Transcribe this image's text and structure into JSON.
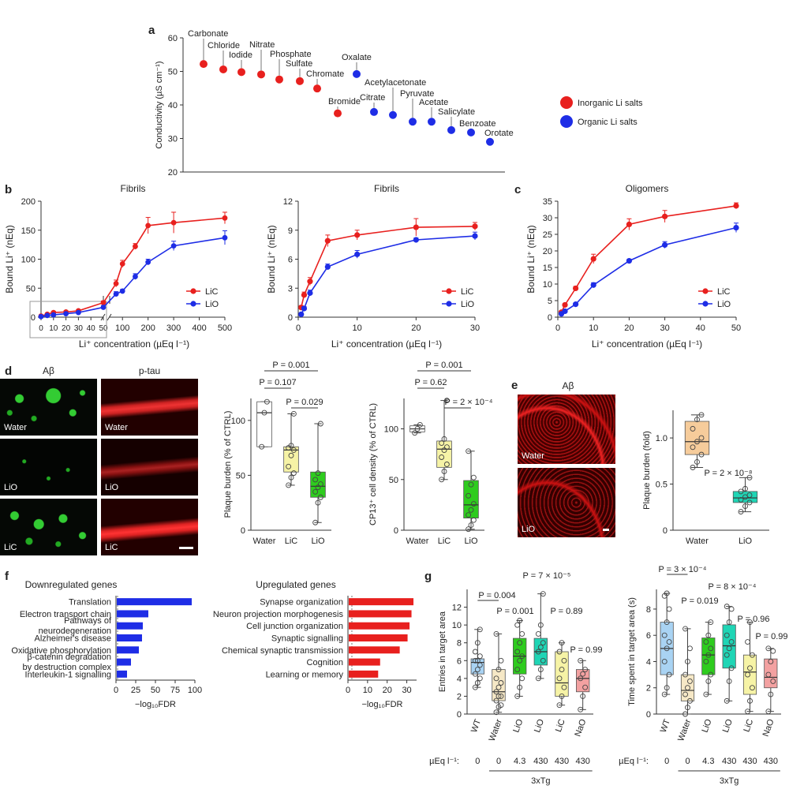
{
  "panels": {
    "a": "a",
    "b": "b",
    "c": "c",
    "d": "d",
    "e": "e",
    "f": "f",
    "g": "g"
  },
  "colors": {
    "red": "#e8201e",
    "blue": "#1e2de6",
    "yellow": "#f6f3a6",
    "green": "#2ecc1e",
    "teal": "#1fd5b5",
    "peach": "#f6cc9b",
    "lightblue": "#a9d3f3",
    "pink": "#f3a1a1",
    "tan": "#f6e8c6"
  },
  "chart_data": [
    {
      "id": "a",
      "type": "scatter",
      "ylabel": "Conductivity (µS cm⁻¹)",
      "ylim": [
        20,
        60
      ],
      "yticks": [
        "20",
        "30",
        "40",
        "50",
        "60"
      ],
      "legend": [
        {
          "name": "Inorganic Li salts",
          "color": "#e8201e"
        },
        {
          "name": "Organic Li salts",
          "color": "#1e2de6"
        }
      ],
      "points": [
        {
          "label": "Carbonate",
          "y": 52.2,
          "group": "inorganic"
        },
        {
          "label": "Chloride",
          "y": 50.6,
          "group": "inorganic"
        },
        {
          "label": "Iodide",
          "y": 49.8,
          "group": "inorganic"
        },
        {
          "label": "Nitrate",
          "y": 49.1,
          "group": "inorganic"
        },
        {
          "label": "Phosphate",
          "y": 47.6,
          "group": "inorganic"
        },
        {
          "label": "Sulfate",
          "y": 47.1,
          "group": "inorganic"
        },
        {
          "label": "Chromate",
          "y": 44.9,
          "group": "inorganic"
        },
        {
          "label": "Bromide",
          "y": 37.5,
          "group": "inorganic"
        },
        {
          "label": "Oxalate",
          "y": 49.2,
          "group": "organic"
        },
        {
          "label": "Citrate",
          "y": 37.9,
          "group": "organic"
        },
        {
          "label": "Acetylacetonate",
          "y": 37.0,
          "group": "organic"
        },
        {
          "label": "Pyruvate",
          "y": 35.0,
          "group": "organic"
        },
        {
          "label": "Acetate",
          "y": 35.0,
          "group": "organic"
        },
        {
          "label": "Salicylate",
          "y": 32.5,
          "group": "organic"
        },
        {
          "label": "Benzoate",
          "y": 31.8,
          "group": "organic"
        },
        {
          "label": "Orotate",
          "y": 29.0,
          "group": "organic"
        }
      ]
    },
    {
      "id": "b1",
      "type": "line",
      "title": "Fibrils",
      "xlabel": "Li⁺ concentration (µEq l⁻¹)",
      "ylabel": "Bound Li⁺ (nEq)",
      "ylim": [
        0,
        200
      ],
      "yticks": [
        "0",
        "50",
        "100",
        "150",
        "200"
      ],
      "xticks_low": [
        "0",
        "10",
        "20",
        "30",
        "40",
        "50"
      ],
      "xticks_high": [
        "100",
        "200",
        "300",
        "400",
        "500"
      ],
      "series": [
        {
          "name": "LiC",
          "color": "#e8201e",
          "x": [
            0,
            5,
            10,
            20,
            30,
            50,
            75,
            100,
            150,
            200,
            300,
            500
          ],
          "y": [
            2,
            5,
            8,
            9,
            11,
            25,
            58,
            92,
            122,
            158,
            163,
            171
          ],
          "err": [
            1,
            1,
            2,
            2,
            2,
            3,
            6,
            6,
            5,
            14,
            18,
            10
          ]
        },
        {
          "name": "LiO",
          "color": "#1e2de6",
          "x": [
            0,
            5,
            10,
            20,
            30,
            50,
            75,
            100,
            150,
            200,
            300,
            500
          ],
          "y": [
            1,
            3,
            4,
            6,
            8,
            17,
            40,
            45,
            70,
            95,
            123,
            137
          ],
          "err": [
            1,
            1,
            1,
            1,
            2,
            3,
            4,
            3,
            5,
            5,
            8,
            12
          ]
        }
      ]
    },
    {
      "id": "b2",
      "type": "line",
      "title": "Fibrils",
      "xlabel": "Li⁺ concentration (µEq l⁻¹)",
      "ylabel": "Bound Li⁺ (nEq)",
      "xlim": [
        0,
        30
      ],
      "ylim": [
        0,
        12
      ],
      "xticks": [
        "0",
        "10",
        "20",
        "30"
      ],
      "yticks": [
        "0",
        "3",
        "6",
        "9",
        "12"
      ],
      "series": [
        {
          "name": "LiC",
          "color": "#e8201e",
          "x": [
            0.5,
            1,
            2,
            5,
            10,
            20,
            30
          ],
          "y": [
            1.0,
            2.3,
            3.7,
            7.9,
            8.5,
            9.3,
            9.4
          ],
          "err": [
            0.2,
            0.3,
            0.4,
            0.6,
            0.5,
            0.9,
            0.4
          ]
        },
        {
          "name": "LiO",
          "color": "#1e2de6",
          "x": [
            0.5,
            1,
            2,
            5,
            10,
            20,
            30
          ],
          "y": [
            0.3,
            0.9,
            2.5,
            5.2,
            6.5,
            8.0,
            8.4
          ],
          "err": [
            0.1,
            0.2,
            0.3,
            0.3,
            0.4,
            0.2,
            0.4
          ]
        }
      ]
    },
    {
      "id": "c",
      "type": "line",
      "title": "Oligomers",
      "xlabel": "Li⁺ concentration (µEq l⁻¹)",
      "ylabel": "Bound Li⁺ (nEq)",
      "xlim": [
        0,
        50
      ],
      "ylim": [
        0,
        35
      ],
      "xticks": [
        "0",
        "10",
        "20",
        "30",
        "40",
        "50"
      ],
      "yticks": [
        "0",
        "5",
        "10",
        "15",
        "20",
        "25",
        "30",
        "35"
      ],
      "series": [
        {
          "name": "LiC",
          "color": "#e8201e",
          "x": [
            1,
            2,
            5,
            10,
            20,
            30,
            50
          ],
          "y": [
            1.5,
            3.7,
            8.7,
            17.6,
            28.0,
            30.4,
            33.6
          ],
          "err": [
            0.3,
            0.4,
            0.6,
            1.4,
            1.7,
            1.8,
            0.9
          ]
        },
        {
          "name": "LiO",
          "color": "#1e2de6",
          "x": [
            1,
            2,
            5,
            10,
            20,
            30,
            50
          ],
          "y": [
            1.0,
            1.8,
            3.9,
            9.7,
            17.0,
            21.8,
            27.0
          ],
          "err": [
            0.2,
            0.3,
            0.4,
            0.7,
            0.5,
            1.0,
            1.4
          ]
        }
      ]
    },
    {
      "id": "d1",
      "type": "box",
      "ylabel": "Plaque burden (% of CTRL)",
      "ylim": [
        0,
        120
      ],
      "yticks": [
        "0",
        "50",
        "100"
      ],
      "categories": [
        "Water",
        "LiC",
        "LiO"
      ],
      "boxes": [
        {
          "color": "#ffffff",
          "q1": 76,
          "median": 107,
          "q3": 117,
          "min": 76,
          "max": 117,
          "points": [
            76,
            107,
            117
          ]
        },
        {
          "color": "#f6f3a6",
          "q1": 53,
          "median": 73,
          "q3": 76,
          "min": 41,
          "max": 106,
          "points": [
            41,
            48,
            52,
            58,
            68,
            73,
            75,
            77,
            106
          ]
        },
        {
          "color": "#2ecc1e",
          "q1": 30,
          "median": 40,
          "q3": 53,
          "min": 7,
          "max": 97,
          "points": [
            7,
            25,
            30,
            35,
            39,
            42,
            46,
            52,
            97
          ]
        }
      ],
      "brackets": [
        {
          "text": "P = 0.001",
          "from": 0,
          "to": 2
        },
        {
          "text": "P = 0.107",
          "from": 0,
          "to": 1
        },
        {
          "text": "P = 0.029",
          "from": 1,
          "to": 2
        }
      ]
    },
    {
      "id": "d2",
      "type": "box",
      "ylabel": "CP13⁺ cell density (% of CTRL)",
      "ylim": [
        0,
        130
      ],
      "yticks": [
        "0",
        "50",
        "100"
      ],
      "categories": [
        "Water",
        "LiC",
        "LiO"
      ],
      "boxes": [
        {
          "color": "#ffffff",
          "q1": 97,
          "median": 100,
          "q3": 103,
          "min": 96,
          "max": 104,
          "points": [
            96,
            100,
            104
          ]
        },
        {
          "color": "#f6f3a6",
          "q1": 62,
          "median": 80,
          "q3": 88,
          "min": 50,
          "max": 128,
          "points": [
            50,
            58,
            65,
            72,
            79,
            82,
            86,
            90,
            128
          ]
        },
        {
          "color": "#2ecc1e",
          "q1": 12,
          "median": 25,
          "q3": 49,
          "min": 1,
          "max": 78,
          "points": [
            1,
            5,
            10,
            15,
            20,
            26,
            34,
            45,
            52,
            78
          ]
        }
      ],
      "brackets": [
        {
          "text": "P = 0.001",
          "from": 0,
          "to": 2
        },
        {
          "text": "P = 0.62",
          "from": 0,
          "to": 1
        },
        {
          "text": "P = 2 × 10⁻⁴",
          "from": 1,
          "to": 2
        }
      ]
    },
    {
      "id": "e",
      "type": "box",
      "ylabel": "Plaque burden (fold)",
      "ylim": [
        0,
        1.3
      ],
      "yticks": [
        "0",
        "0.5",
        "1.0"
      ],
      "categories": [
        "Water",
        "LiO"
      ],
      "boxes": [
        {
          "color": "#f6cc9b",
          "q1": 0.82,
          "median": 0.96,
          "q3": 1.18,
          "min": 0.68,
          "max": 1.25,
          "points": [
            0.68,
            0.74,
            0.82,
            0.9,
            0.96,
            1.0,
            1.1,
            1.2,
            1.25
          ]
        },
        {
          "color": "#1fd5b5",
          "q1": 0.3,
          "median": 0.35,
          "q3": 0.42,
          "min": 0.2,
          "max": 0.57,
          "points": [
            0.2,
            0.26,
            0.3,
            0.33,
            0.36,
            0.38,
            0.42,
            0.45,
            0.57
          ]
        }
      ],
      "annotations": [
        {
          "text": "P = 2 × 10⁻⁸"
        }
      ]
    },
    {
      "id": "f1",
      "type": "bar",
      "orientation": "horizontal",
      "title": "Downregulated genes",
      "xlabel": "−log₁₀FDR",
      "xlim": [
        0,
        100
      ],
      "xticks": [
        "0",
        "25",
        "50",
        "75",
        "100"
      ],
      "categories": [
        "Translation",
        "Electron transport chain",
        "Pathways of neurodegeneration",
        "Alzheimer's disease",
        "Oxidative phosphorylation",
        "β-catenin degradation by destruction complex",
        "Interleukin-1 signalling"
      ],
      "values": [
        95,
        40,
        33,
        32,
        28,
        18,
        13
      ],
      "color": "#1e2de6"
    },
    {
      "id": "f2",
      "type": "bar",
      "orientation": "horizontal",
      "title": "Upregulated genes",
      "xlabel": "−log₁₀FDR",
      "xlim": [
        0,
        35
      ],
      "xticks": [
        "0",
        "10",
        "20",
        "30"
      ],
      "categories": [
        "Synapse organization",
        "Neuron projection morphogenesis",
        "Cell junction organization",
        "Synaptic signalling",
        "Chemical synaptic transmission",
        "Cognition",
        "Learning or memory"
      ],
      "values": [
        33,
        32,
        31,
        30,
        26,
        16,
        15
      ],
      "color": "#e8201e"
    },
    {
      "id": "g1",
      "type": "box",
      "ylabel": "Entries in target area",
      "ylim": [
        0,
        14
      ],
      "yticks": [
        "0",
        "2",
        "4",
        "6",
        "8",
        "10",
        "12"
      ],
      "categories": [
        "WT",
        "Water",
        "LiO",
        "LiO",
        "LiC",
        "NaO"
      ],
      "doses": [
        "0",
        "0",
        "4.3",
        "430",
        "430",
        "430"
      ],
      "dose_label": "µEq l⁻¹:",
      "group_label": "3xTg",
      "boxes": [
        {
          "color": "#a9d3f3",
          "q1": 4.5,
          "median": 5.8,
          "q3": 6.2,
          "min": 3.0,
          "max": 9.5,
          "points": [
            3,
            3.5,
            4,
            4.5,
            5,
            5.5,
            6,
            6,
            6.5,
            7,
            8,
            9.5
          ]
        },
        {
          "color": "#f6e8c6",
          "q1": 1.5,
          "median": 2.5,
          "q3": 5.0,
          "min": 0.2,
          "max": 9.0,
          "points": [
            0.2,
            0.8,
            1,
            1.5,
            2,
            2,
            2.5,
            3,
            3.5,
            4,
            5,
            6,
            9
          ]
        },
        {
          "color": "#2ecc1e",
          "q1": 4.5,
          "median": 6.5,
          "q3": 8.5,
          "min": 2.0,
          "max": 10.5,
          "points": [
            2,
            3,
            4,
            5,
            6,
            6.5,
            7,
            8,
            9,
            10,
            10.5
          ]
        },
        {
          "color": "#1fd5b5",
          "q1": 5.5,
          "median": 7.0,
          "q3": 8.5,
          "min": 4.0,
          "max": 13.5,
          "points": [
            4,
            5,
            6,
            7,
            7.5,
            8,
            9,
            10,
            13.5
          ]
        },
        {
          "color": "#f6f3a6",
          "q1": 2.0,
          "median": 3.5,
          "q3": 7.0,
          "min": 1.0,
          "max": 8.0,
          "points": [
            1,
            2,
            3,
            4,
            5,
            6,
            7,
            8
          ]
        },
        {
          "color": "#f3a1a1",
          "q1": 2.5,
          "median": 4.0,
          "q3": 5.0,
          "min": 0.5,
          "max": 6.0,
          "points": [
            0.5,
            2,
            3,
            4,
            4.5,
            5,
            6
          ]
        }
      ],
      "annotations": [
        {
          "text": "P = 0.004"
        },
        {
          "text": "P = 7 × 10⁻⁵"
        },
        {
          "text": "P = 0.001"
        },
        {
          "text": "P = 0.89"
        },
        {
          "text": "P = 0.99"
        }
      ]
    },
    {
      "id": "g2",
      "type": "box",
      "ylabel": "Time spent in target area (s)",
      "ylim": [
        0,
        9.5
      ],
      "yticks": [
        "0",
        "2",
        "4",
        "6",
        "8"
      ],
      "categories": [
        "WT",
        "Water",
        "LiO",
        "LiO",
        "LiC",
        "NaO"
      ],
      "doses": [
        "0",
        "0",
        "4.3",
        "430",
        "430",
        "430"
      ],
      "dose_label": "µEq l⁻¹:",
      "group_label": "3xTg",
      "boxes": [
        {
          "color": "#a9d3f3",
          "q1": 3.0,
          "median": 5.0,
          "q3": 7.0,
          "min": 1.5,
          "max": 9.2,
          "points": [
            1.5,
            2,
            3,
            4,
            5,
            5.5,
            6,
            7,
            8,
            9,
            9.2
          ]
        },
        {
          "color": "#f6e8c6",
          "q1": 1.0,
          "median": 1.8,
          "q3": 3.0,
          "min": 0.0,
          "max": 6.5,
          "points": [
            0,
            0.5,
            1,
            1.5,
            2,
            2.5,
            3,
            4,
            5,
            6.5
          ]
        },
        {
          "color": "#2ecc1e",
          "q1": 3.0,
          "median": 4.5,
          "q3": 5.8,
          "min": 1.5,
          "max": 7.0,
          "points": [
            1.5,
            2.5,
            3,
            4,
            4.5,
            5,
            5.5,
            6,
            7
          ]
        },
        {
          "color": "#1fd5b5",
          "q1": 3.5,
          "median": 5.2,
          "q3": 6.8,
          "min": 1.0,
          "max": 8.2,
          "points": [
            1,
            2.5,
            3.5,
            4.5,
            5,
            5.5,
            6,
            7,
            8,
            8.2
          ]
        },
        {
          "color": "#f6f3a6",
          "q1": 1.5,
          "median": 3.2,
          "q3": 4.5,
          "min": 0.2,
          "max": 7.0,
          "points": [
            0.2,
            1,
            2,
            3,
            3.5,
            4.5,
            5.5,
            7
          ]
        },
        {
          "color": "#f3a1a1",
          "q1": 2.0,
          "median": 2.8,
          "q3": 4.2,
          "min": 0.2,
          "max": 5.0,
          "points": [
            0.2,
            1.5,
            2.5,
            3,
            4,
            4.8,
            5
          ]
        }
      ],
      "annotations": [
        {
          "text": "P = 3 × 10⁻⁴"
        },
        {
          "text": "P = 8 × 10⁻⁴"
        },
        {
          "text": "P = 0.019"
        },
        {
          "text": "P = 0.96"
        },
        {
          "text": "P = 0.99"
        }
      ]
    }
  ],
  "micrographs": {
    "d_headers": [
      "Aβ",
      "p-tau"
    ],
    "d_labels": [
      "Water",
      "Water",
      "LiO",
      "LiO",
      "LiC",
      "LiC"
    ],
    "e_header": "Aβ",
    "e_labels": [
      "Water",
      "LiO"
    ]
  }
}
